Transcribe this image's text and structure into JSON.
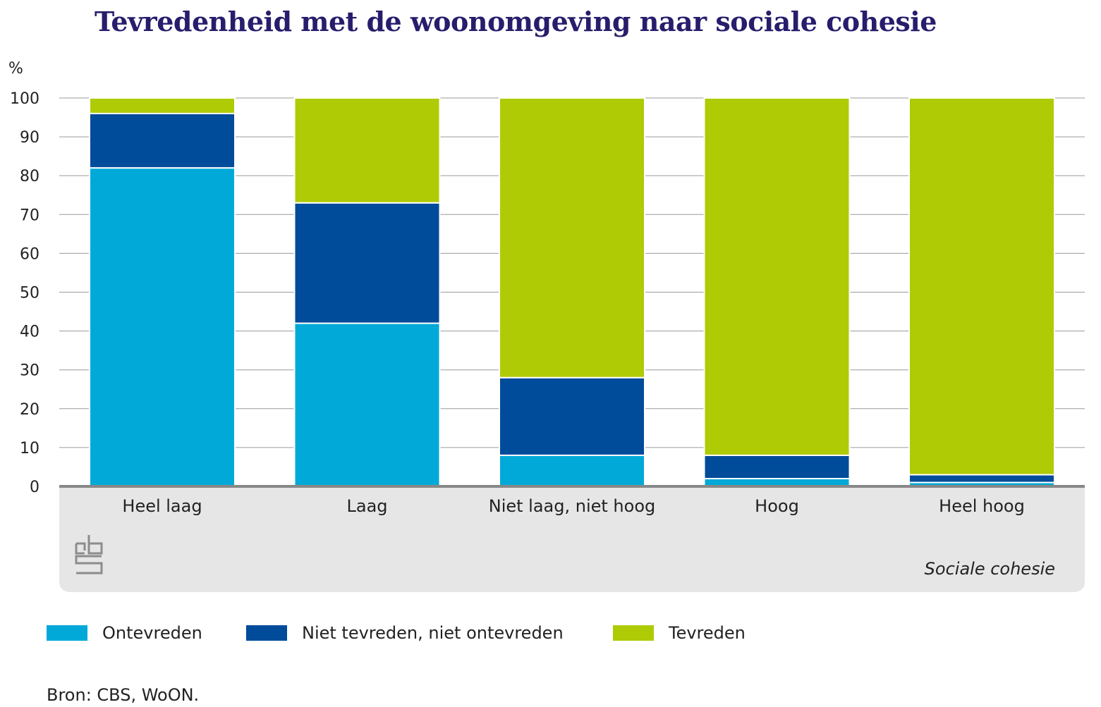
{
  "page": {
    "source": "Bron: CBS, WoON."
  },
  "chart_data": {
    "type": "bar",
    "stacked": true,
    "title": "Tevredenheid met de woonomgeving naar sociale cohesie",
    "ylabel": "%",
    "xlabel": "Sociale cohesie",
    "ylim": [
      0,
      100
    ],
    "yticks": [
      0,
      10,
      20,
      30,
      40,
      50,
      60,
      70,
      80,
      90,
      100
    ],
    "grid": true,
    "legend_position": "bottom",
    "categories": [
      "Heel laag",
      "Laag",
      "Niet laag, niet hoog",
      "Hoog",
      "Heel hoog"
    ],
    "series": [
      {
        "name": "Ontevreden",
        "color": "#00a9d8",
        "values": [
          82,
          42,
          8,
          2,
          1
        ]
      },
      {
        "name": "Niet tevreden, niet ontevreden",
        "color": "#004b9a",
        "values": [
          14,
          31,
          20,
          6,
          2
        ]
      },
      {
        "name": "Tevreden",
        "color": "#afcb05",
        "values": [
          4,
          27,
          72,
          92,
          97
        ]
      }
    ]
  },
  "logo": {
    "icon": "cbs-logo-icon"
  }
}
